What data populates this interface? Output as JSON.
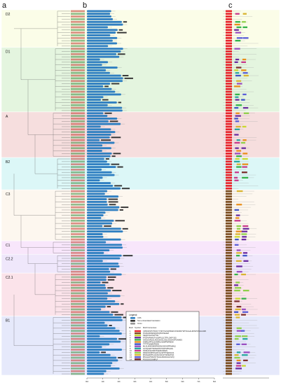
{
  "panels": [
    "a",
    "b",
    "c"
  ],
  "clades": [
    {
      "name": "D2",
      "color": "#fbfde8",
      "rows": 14
    },
    {
      "name": "D1",
      "color": "#e4f5df",
      "rows": 24
    },
    {
      "name": "A",
      "color": "#f6dede",
      "rows": 17
    },
    {
      "name": "B2",
      "color": "#dcf7f7",
      "rows": 12
    },
    {
      "name": "C3",
      "color": "#fdf7ef",
      "rows": 19
    },
    {
      "name": "C1",
      "color": "#f8e6fb",
      "rows": 5
    },
    {
      "name": "C2.2",
      "color": "#efe7fb",
      "rows": 7
    },
    {
      "name": "C2.1",
      "color": "#fbe3ea",
      "rows": 16
    },
    {
      "name": "B1",
      "color": "#e6e9fb",
      "rows": 22
    }
  ],
  "legend": {
    "title": "Legend:",
    "items": [
      {
        "label": "CDS",
        "color": "#2f7fc1"
      },
      {
        "label": "Non-untranslated translation",
        "color": "#333333"
      },
      {
        "label": "Intron",
        "color": "#999999"
      }
    ],
    "motif_header": [
      "Motif",
      "Symbol",
      "Motif Consensus"
    ],
    "motifs": [
      {
        "id": "1",
        "color": "#e8232a",
        "consensus": "CPRCDSTNTKFCYYNNYSLSQPRHFCKSCRRYWTKGGALRNVPVGGGCRK"
      },
      {
        "id": "2",
        "color": "#7a4b1e",
        "consensus": "PGSGNKRESQMVQPLPIEHLE"
      },
      {
        "id": "3",
        "color": "#c9d82f",
        "consensus": "KEQFTALPGKTSS"
      },
      {
        "id": "4",
        "color": "#6a2ca0",
        "consensus": "PTDPVPNRSTVSSPFLSLTTPLGKPYDG"
      },
      {
        "id": "5",
        "color": "#34b34a",
        "consensus": "GHGGGRLGLNGGSGGLGSLGGGHGPGNHEG"
      },
      {
        "id": "6",
        "color": "#e98f1c",
        "consensus": "KNRDLPPSLSANRNLNDMPWPEDM"
      },
      {
        "id": "7",
        "color": "#3e54c8",
        "consensus": "TTTTFQNMKPSDN"
      },
      {
        "id": "8",
        "color": "#9a4fc0",
        "consensus": "MLSLNNSSMNRNSSNSSSVEPPAMAQ"
      },
      {
        "id": "9",
        "color": "#2aa8a0",
        "consensus": "GLSQLEDTSDSHDNYNGPSPPQSG"
      },
      {
        "id": "10",
        "color": "#c83a8b",
        "consensus": "NNSHGSLNMNTGERGSDEN"
      },
      {
        "id": "11",
        "color": "#8fd04a",
        "consensus": "RRAKNKRPSSLRVGLSPTPSENGGS"
      },
      {
        "id": "12",
        "color": "#d9b431",
        "consensus": "MSNLEKPPLQGSGVDLSTNNSHTRA"
      },
      {
        "id": "13",
        "color": "#5a5ed8",
        "consensus": "MSGHLPSSGSYSGGLMGNGGGSVQ"
      },
      {
        "id": "14",
        "color": "#7c3030",
        "consensus": "PGGGGGGNIPLF"
      }
    ]
  },
  "axis_ticks": [
    "0kb",
    "1kb",
    "2kb",
    "3kb",
    "4kb",
    "5kb",
    "6kb",
    "7kb",
    "8kb"
  ]
}
